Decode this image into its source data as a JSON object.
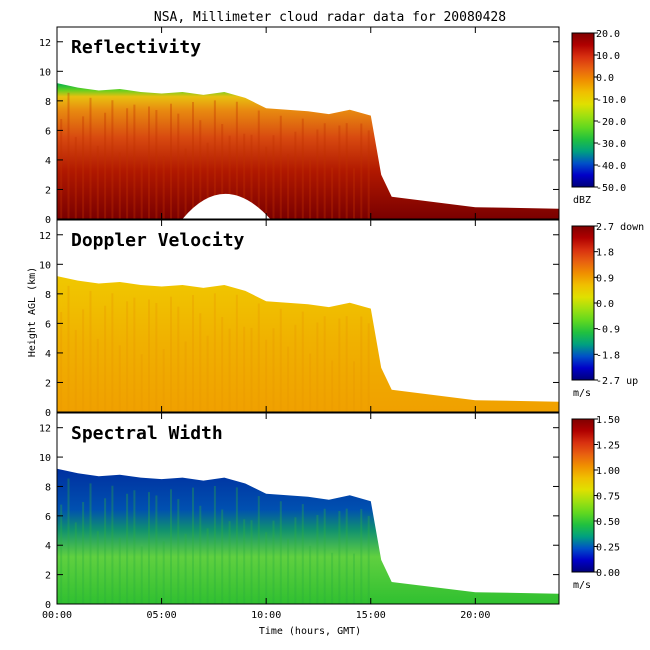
{
  "title": "NSA, Millimeter cloud radar data for 20080428",
  "xlabel": "Time (hours, GMT)",
  "ylabel": "Height AGL (km)",
  "colorbar_palette": [
    "#00007a",
    "#0000c8",
    "#0050c8",
    "#00a080",
    "#20c040",
    "#60d820",
    "#a0e010",
    "#e0e000",
    "#f0c000",
    "#f09000",
    "#e86010",
    "#d83010",
    "#b00000",
    "#800000"
  ],
  "chart_data": [
    {
      "type": "heatmap",
      "panel_label": "Reflectivity",
      "quantity": "Reflectivity",
      "unit": "dBZ",
      "x_ticks": [
        "00:00",
        "05:00",
        "10:00",
        "15:00",
        "20:00"
      ],
      "x_range_hours": [
        0,
        24
      ],
      "y_ticks": [
        "0",
        "2",
        "4",
        "6",
        "8",
        "10",
        "12"
      ],
      "y_range_km": [
        0,
        13
      ],
      "colorbar_range": [
        -50,
        20
      ],
      "colorbar_ticks": [
        "20.0",
        "10.0",
        "0.0",
        "-10.0",
        "-20.0",
        "-30.0",
        "-40.0",
        "-50.0"
      ],
      "cloud_top_km": [
        {
          "t": 0,
          "h": 9.2
        },
        {
          "t": 1,
          "h": 8.9
        },
        {
          "t": 2,
          "h": 8.7
        },
        {
          "t": 3,
          "h": 8.8
        },
        {
          "t": 4,
          "h": 8.6
        },
        {
          "t": 5,
          "h": 8.5
        },
        {
          "t": 6,
          "h": 8.6
        },
        {
          "t": 7,
          "h": 8.4
        },
        {
          "t": 8,
          "h": 8.6
        },
        {
          "t": 9,
          "h": 8.2
        },
        {
          "t": 10,
          "h": 7.5
        },
        {
          "t": 11,
          "h": 7.4
        },
        {
          "t": 12,
          "h": 7.3
        },
        {
          "t": 13,
          "h": 7.1
        },
        {
          "t": 14,
          "h": 7.4
        },
        {
          "t": 15,
          "h": 7.0
        },
        {
          "t": 15.5,
          "h": 3.0
        },
        {
          "t": 16,
          "h": 1.5
        },
        {
          "t": 20,
          "h": 0.8
        },
        {
          "t": 24,
          "h": 0.7
        }
      ]
    },
    {
      "type": "heatmap",
      "panel_label": "Doppler Velocity",
      "quantity": "Doppler Velocity",
      "unit": "m/s",
      "x_ticks": [
        "00:00",
        "05:00",
        "10:00",
        "15:00",
        "20:00"
      ],
      "x_range_hours": [
        0,
        24
      ],
      "y_ticks": [
        "0",
        "2",
        "4",
        "6",
        "8",
        "10",
        "12"
      ],
      "y_range_km": [
        0,
        13
      ],
      "colorbar_range": [
        -2.7,
        2.7
      ],
      "colorbar_ticks": [
        "2.7 down",
        "1.8",
        "0.9",
        "0.0",
        "-0.9",
        "-1.8",
        "-2.7 up"
      ]
    },
    {
      "type": "heatmap",
      "panel_label": "Spectral Width",
      "quantity": "Spectral Width",
      "unit": "m/s",
      "x_ticks": [
        "00:00",
        "05:00",
        "10:00",
        "15:00",
        "20:00"
      ],
      "x_range_hours": [
        0,
        24
      ],
      "y_ticks": [
        "0",
        "2",
        "4",
        "6",
        "8",
        "10",
        "12"
      ],
      "y_range_km": [
        0,
        13
      ],
      "colorbar_range": [
        0,
        1.5
      ],
      "colorbar_ticks": [
        "1.50",
        "1.25",
        "1.00",
        "0.75",
        "0.50",
        "0.25",
        "0.00"
      ]
    }
  ]
}
